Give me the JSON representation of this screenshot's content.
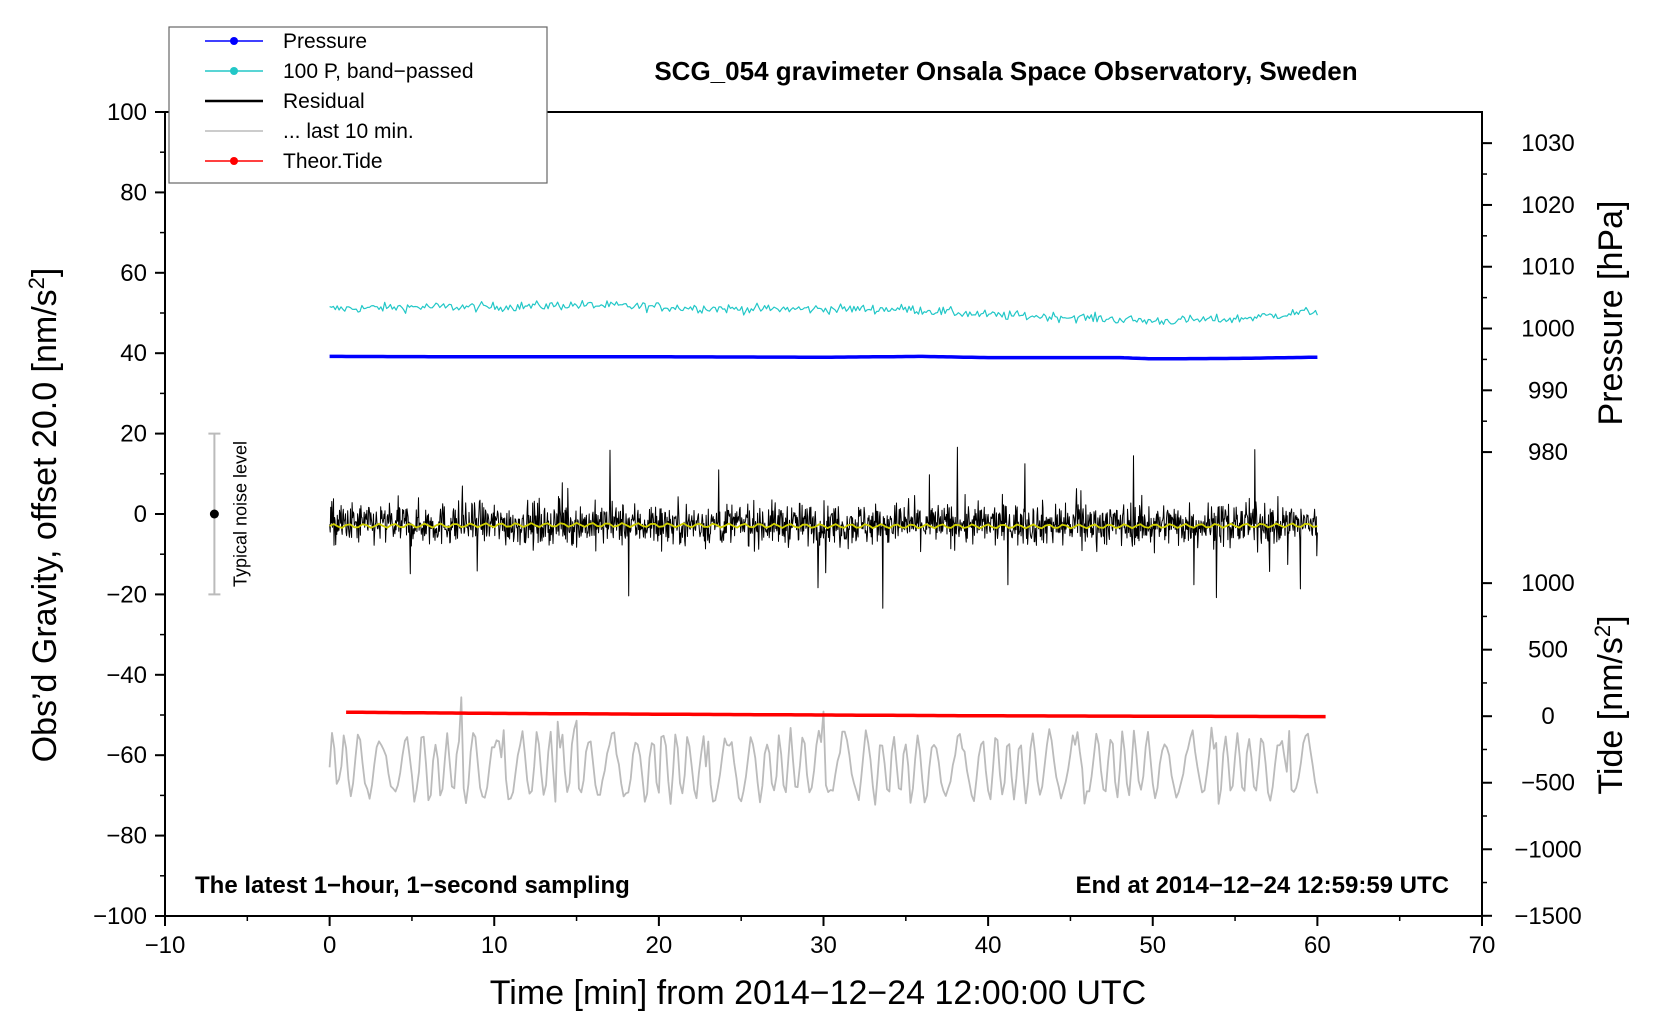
{
  "chart_data": {
    "type": "line",
    "title": "SCG_054 gravimeter Onsala Space Observatory, Sweden",
    "xlabel": "Time [min] from 2014−12−24 12:00:00 UTC",
    "ylabel_left": "Obs’d Gravity, offset 20.0 [nm/s",
    "ylabel_left_sup": "2",
    "ylabel_left_end": "]",
    "ylabel_right_pressure": "Pressure [hPa]",
    "ylabel_right_tide": "Tide [nm/s",
    "ylabel_right_tide_sup": "2",
    "ylabel_right_tide_end": "]",
    "xlim": [
      -10,
      70
    ],
    "ylim": [
      -100,
      100
    ],
    "x_ticks": [
      -10,
      0,
      10,
      20,
      30,
      40,
      50,
      60,
      70
    ],
    "x_tick_labels": [
      "−10",
      "0",
      "10",
      "20",
      "30",
      "40",
      "50",
      "60",
      "70"
    ],
    "y_ticks": [
      -100,
      -80,
      -60,
      -40,
      -20,
      0,
      20,
      40,
      60,
      80,
      100
    ],
    "y_tick_labels": [
      "−100",
      "−80",
      "−60",
      "−40",
      "−20",
      "0",
      "20",
      "40",
      "60",
      "80",
      "100"
    ],
    "pressure_axis": {
      "ticks": [
        980,
        990,
        1000,
        1010,
        1020,
        1030
      ],
      "tick_labels": [
        "980",
        "990",
        "1000",
        "1010",
        "1020",
        "1030"
      ],
      "ref_value": 980,
      "ref_gravity": 15.4,
      "gravity_per_unit": 1.537
    },
    "tide_axis": {
      "ticks": [
        -1500,
        -1000,
        -500,
        0,
        500,
        1000
      ],
      "tick_labels": [
        "−1500",
        "−1000",
        "−500",
        "0",
        "500",
        "1000"
      ],
      "ref_value": 0,
      "ref_gravity": -50.3,
      "gravity_per_unit": 0.0331
    },
    "legend": [
      {
        "label": "Pressure",
        "color": "#0000ff",
        "marker": true
      },
      {
        "label": "100 P, band−passed",
        "color": "#22c7c7",
        "marker": true
      },
      {
        "label": "Residual",
        "color": "#000000",
        "marker": false
      },
      {
        "label": "... last 10 min.",
        "color": "#bbbbbb",
        "marker": false
      },
      {
        "label": "Theor.Tide",
        "color": "#ff0000",
        "marker": true
      }
    ],
    "series": [
      {
        "name": "Pressure",
        "color": "#0000ff",
        "x": [
          0,
          10,
          20,
          30,
          36,
          40,
          45,
          48,
          50,
          55,
          60
        ],
        "y": [
          39.2,
          39.1,
          39.1,
          39.0,
          39.2,
          38.9,
          38.9,
          38.9,
          38.6,
          38.7,
          39.0
        ]
      },
      {
        "name": "100 P, band−passed",
        "color": "#22c7c7",
        "x": [
          0,
          5,
          10,
          15,
          20,
          25,
          30,
          35,
          40,
          45,
          50,
          55,
          60
        ],
        "y": [
          51.0,
          51.5,
          51.5,
          52.0,
          51.5,
          51.0,
          51.0,
          51.0,
          49.5,
          49.0,
          48.0,
          48.5,
          50.5
        ],
        "noise_amp": 2.0
      },
      {
        "name": "Residual",
        "color": "#000000",
        "x": [
          0,
          60
        ],
        "y": [
          -2.5,
          -2.5
        ],
        "noise_amp": 9.0,
        "spike_amp": 20.0
      },
      {
        "name": "Residual smoothed",
        "color": "#d0d000",
        "x": [
          0,
          15,
          30,
          45,
          60
        ],
        "y": [
          -3.0,
          -2.7,
          -3.0,
          -3.1,
          -2.8
        ]
      },
      {
        "name": "... last 10 min.",
        "color": "#bbbbbb",
        "x": [
          0,
          60
        ],
        "y": [
          -63.0,
          -63.0
        ],
        "noise_amp": 9.0,
        "spike_amp": 22.0
      },
      {
        "name": "Theor.Tide",
        "color": "#ff0000",
        "x": [
          1,
          10,
          20,
          30,
          40,
          50,
          60.5
        ],
        "y": [
          -49.3,
          -49.6,
          -49.8,
          -50.0,
          -50.2,
          -50.3,
          -50.4
        ]
      }
    ],
    "noise_bar": {
      "label": "Typical noise level",
      "x": -7,
      "center": 0,
      "low": -20,
      "high": 20
    },
    "notes": {
      "left": "The latest 1−hour, 1−second sampling",
      "right": "End at 2014−12−24 12:59:59 UTC"
    }
  }
}
